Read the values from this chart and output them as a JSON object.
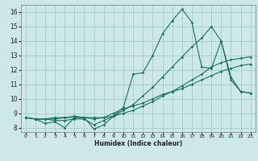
{
  "title": "",
  "xlabel": "Humidex (Indice chaleur)",
  "xlim": [
    -0.5,
    23.5
  ],
  "ylim": [
    7.7,
    16.5
  ],
  "yticks": [
    8,
    9,
    10,
    11,
    12,
    13,
    14,
    15,
    16
  ],
  "xticks": [
    0,
    1,
    2,
    3,
    4,
    5,
    6,
    7,
    8,
    9,
    10,
    11,
    12,
    13,
    14,
    15,
    16,
    17,
    18,
    19,
    20,
    21,
    22,
    23
  ],
  "bg_color": "#cce8e8",
  "grid_color": "#aacece",
  "line_color": "#1a7060",
  "lines": [
    [
      8.7,
      8.6,
      8.3,
      8.4,
      8.0,
      8.7,
      8.7,
      7.9,
      8.2,
      8.8,
      9.4,
      11.7,
      11.8,
      13.0,
      14.5,
      15.4,
      16.2,
      15.3,
      12.2,
      12.1,
      14.0,
      11.3,
      10.5,
      10.4
    ],
    [
      8.7,
      8.6,
      8.6,
      8.7,
      8.7,
      8.8,
      8.7,
      8.6,
      8.7,
      9.0,
      9.3,
      9.5,
      9.7,
      10.0,
      10.3,
      10.5,
      10.7,
      11.0,
      11.3,
      11.6,
      11.9,
      12.1,
      12.3,
      12.4
    ],
    [
      8.7,
      8.6,
      8.6,
      8.5,
      8.5,
      8.6,
      8.6,
      8.2,
      8.5,
      8.8,
      9.2,
      9.6,
      10.2,
      10.8,
      11.5,
      12.2,
      12.9,
      13.6,
      14.2,
      15.0,
      14.0,
      11.5,
      10.5,
      10.4
    ],
    [
      8.7,
      8.6,
      8.6,
      8.6,
      8.7,
      8.7,
      8.7,
      8.7,
      8.7,
      8.8,
      9.0,
      9.2,
      9.5,
      9.8,
      10.2,
      10.5,
      10.9,
      11.3,
      11.7,
      12.2,
      12.5,
      12.7,
      12.8,
      12.9
    ]
  ]
}
